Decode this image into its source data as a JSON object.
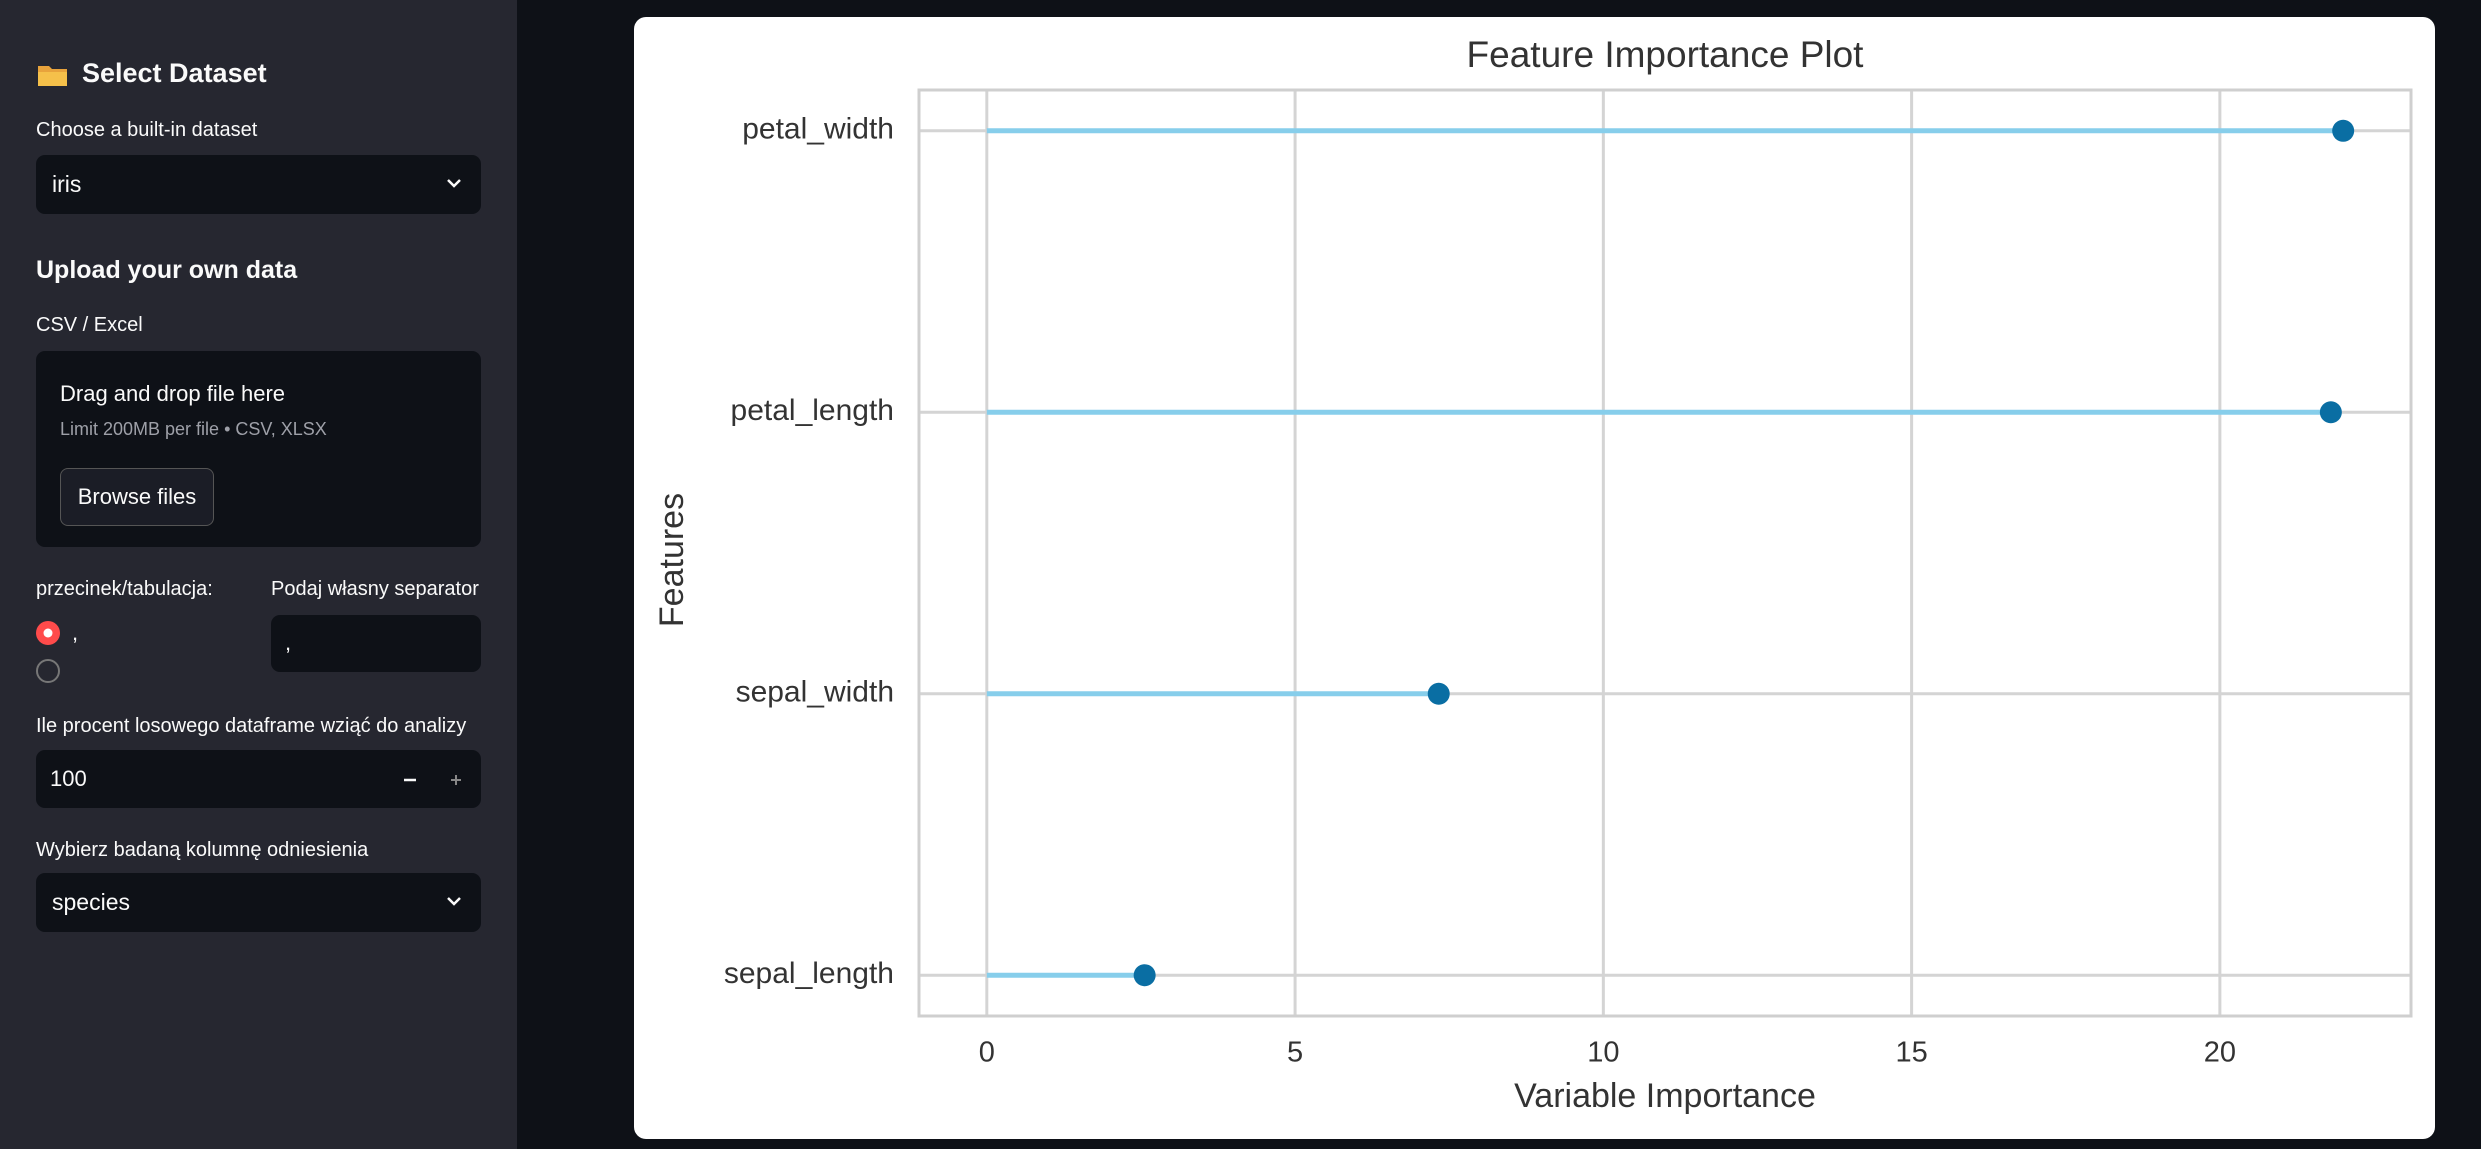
{
  "sidebar": {
    "title": "Select Dataset",
    "dataset_label": "Choose a built-in dataset",
    "dataset_value": "iris",
    "upload_title": "Upload your own data",
    "upload_label": "CSV / Excel",
    "dropzone_title": "Drag and drop file here",
    "dropzone_hint": "Limit 200MB per file • CSV, XLSX",
    "browse_button": "Browse files",
    "radio_label": "przecinek/tabulacja:",
    "radio_option": ",",
    "separator_label": "Podaj własny separator",
    "separator_value": ",",
    "percent_label": "Ile procent losowego dataframe wziąć do analizy",
    "percent_value": 100,
    "target_label": "Wybierz badaną kolumnę odniesienia",
    "target_value": "species"
  },
  "chart_data": {
    "type": "lollipop",
    "title": "Feature Importance Plot",
    "x_label": "Variable Importance",
    "y_label": "Features",
    "categories": [
      "sepal_length",
      "sepal_width",
      "petal_length",
      "petal_width"
    ],
    "values": [
      2.56,
      7.33,
      21.8,
      22.0
    ],
    "line_color": "#87ceeb",
    "color": "#0a6ea3",
    "xlim": [
      -1.1,
      23.1
    ],
    "xticks": [
      0,
      5,
      10,
      15,
      20
    ],
    "grid": true
  }
}
